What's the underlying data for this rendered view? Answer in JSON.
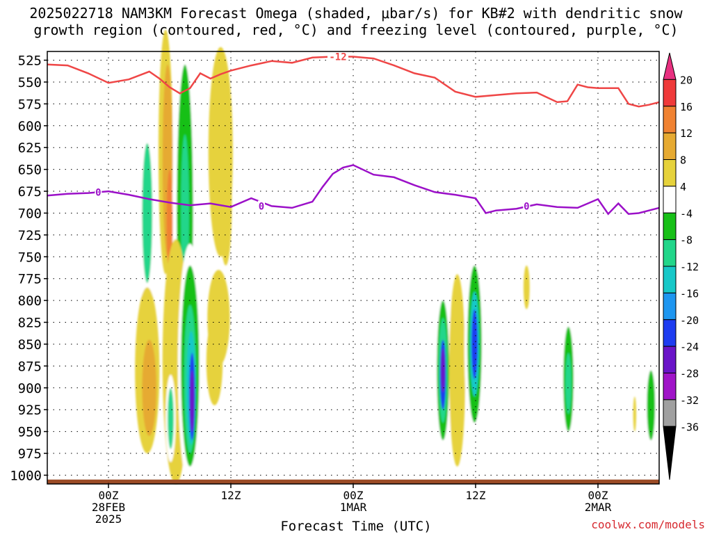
{
  "titles": {
    "line1": "2025022718 NAM3KM Forecast Omega (shaded, μbar/s) for KB#2 with dendritic snow",
    "line2": "growth region (contoured, red, °C) and freezing level (contoured, purple, °C)"
  },
  "credit": "coolwx.com/models",
  "chart_data": {
    "type": "heatmap",
    "title": "2025022718 NAM3KM Forecast Omega (shaded, μbar/s) for KB#2 with dendritic snow growth region (contoured, red, °C) and freezing level (contoured, purple, °C)",
    "xlabel": "Forecast Time (UTC)",
    "ylabel": "",
    "x_range_hours_from_init": [
      0,
      60
    ],
    "x_ticks": [
      {
        "hour": 6,
        "label": "00Z",
        "sub1": "28FEB",
        "sub2": "2025"
      },
      {
        "hour": 18,
        "label": "12Z",
        "sub1": "",
        "sub2": ""
      },
      {
        "hour": 30,
        "label": "00Z",
        "sub1": "1MAR",
        "sub2": ""
      },
      {
        "hour": 42,
        "label": "12Z",
        "sub1": "",
        "sub2": ""
      },
      {
        "hour": 54,
        "label": "00Z",
        "sub1": "2MAR",
        "sub2": ""
      }
    ],
    "y_axis_pressure_hPa": [
      525,
      550,
      575,
      600,
      625,
      650,
      675,
      700,
      725,
      750,
      775,
      800,
      825,
      850,
      875,
      900,
      925,
      950,
      975,
      1000
    ],
    "ylim": [
      1010,
      515
    ],
    "grid": true,
    "colorbar": {
      "levels": [
        20,
        16,
        12,
        8,
        4,
        -4,
        -8,
        -12,
        -16,
        -20,
        -24,
        -28,
        -32,
        -36
      ],
      "colors": [
        "#e83080",
        "#ef3a3a",
        "#f08232",
        "#e6aa32",
        "#e6d23c",
        "#ffffff",
        "#18c018",
        "#22d68a",
        "#18c8c8",
        "#1e96f0",
        "#1e3cf0",
        "#6a14c8",
        "#a014c8",
        "#a0a0a0",
        "#000000"
      ]
    },
    "series": [
      {
        "name": "-12",
        "color": "#ef4646",
        "x": [
          0,
          2,
          4,
          6,
          8,
          10,
          11,
          12,
          13,
          14,
          15,
          16,
          17,
          18,
          20,
          22,
          24,
          26,
          28,
          30,
          32,
          34,
          36,
          38,
          40,
          42,
          44,
          46,
          48,
          50,
          51,
          52,
          53,
          54,
          56,
          57,
          58,
          59,
          60
        ],
        "y": [
          530,
          531,
          540,
          551,
          547,
          538,
          546,
          556,
          563,
          557,
          540,
          546,
          541,
          537,
          531,
          526,
          528,
          522,
          521,
          521,
          523,
          531,
          540,
          545,
          561,
          567,
          565,
          563,
          562,
          573,
          572,
          553,
          556,
          557,
          557,
          575,
          578,
          576,
          573
        ]
      },
      {
        "name": "0",
        "color": "#9b10c8",
        "x": [
          0,
          2,
          4,
          6,
          8,
          10,
          12,
          14,
          16,
          18,
          20,
          22,
          24,
          26,
          27,
          28,
          29,
          30,
          32,
          34,
          36,
          38,
          40,
          42,
          43,
          44,
          46,
          48,
          50,
          52,
          54,
          55,
          56,
          57,
          58,
          60
        ],
        "y": [
          680,
          678,
          677,
          675,
          679,
          684,
          688,
          691,
          689,
          693,
          683,
          692,
          694,
          687,
          670,
          655,
          648,
          645,
          656,
          659,
          668,
          676,
          679,
          683,
          700,
          697,
          695,
          690,
          693,
          694,
          684,
          701,
          689,
          701,
          700,
          694
        ]
      }
    ],
    "contour_labels": [
      {
        "text": "-12",
        "x": 28.5,
        "y": 521,
        "color": "#ef4646"
      },
      {
        "text": "0",
        "x": 5,
        "y": 676,
        "color": "#9b10c8"
      },
      {
        "text": "0",
        "x": 21,
        "y": 692,
        "color": "#9b10c8"
      },
      {
        "text": "0",
        "x": 47,
        "y": 692,
        "color": "#9b10c8"
      }
    ]
  }
}
